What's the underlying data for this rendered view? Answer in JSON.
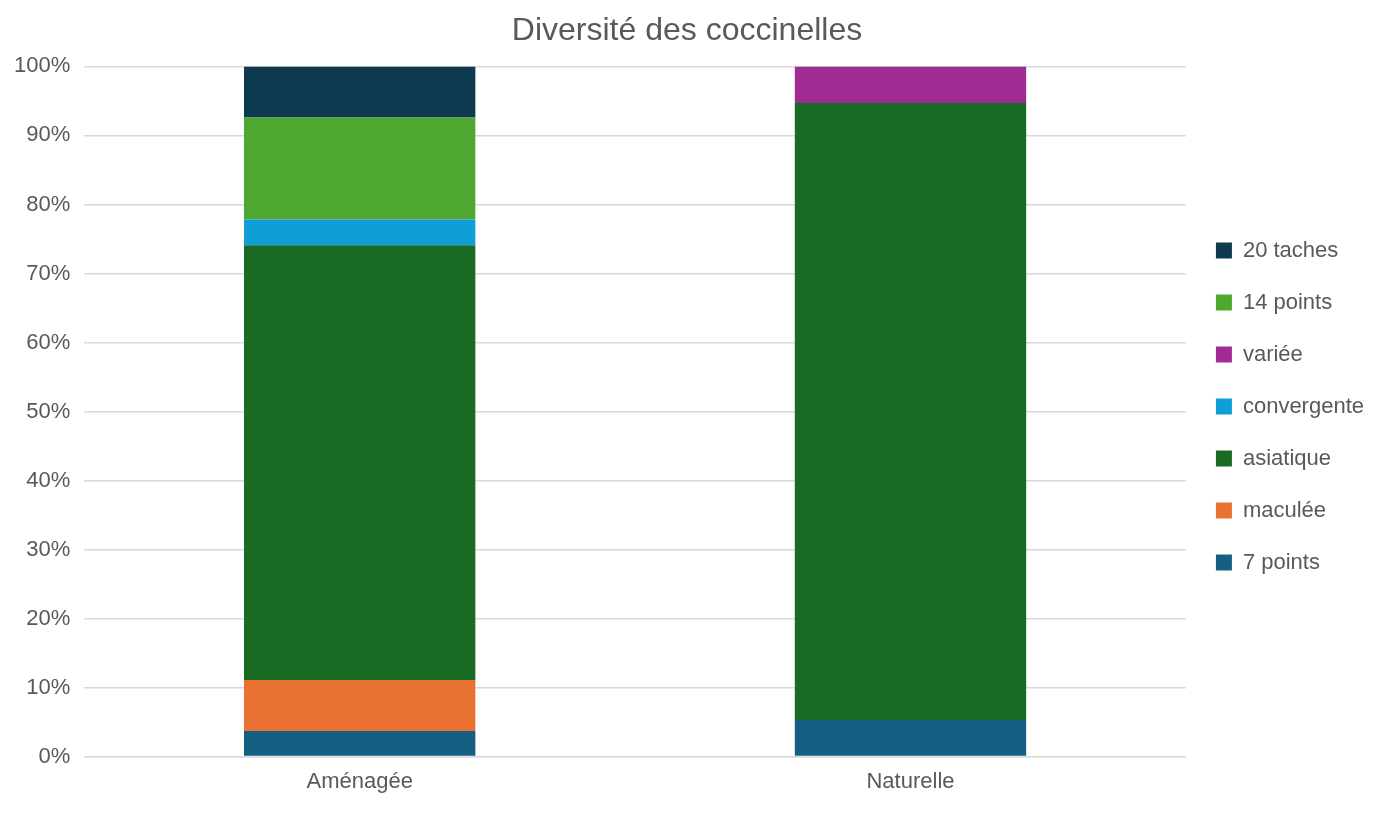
{
  "chart_data": {
    "type": "bar",
    "title": "Diversité des coccinelles",
    "stacked": true,
    "categories": [
      "Aménagée",
      "Naturelle"
    ],
    "series": [
      {
        "name": "7 points",
        "color": "#156082",
        "values": [
          3.7,
          5.3
        ]
      },
      {
        "name": "maculée",
        "color": "#e97132",
        "values": [
          7.4,
          0
        ]
      },
      {
        "name": "asiatique",
        "color": "#196b24",
        "values": [
          63.0,
          89.4
        ]
      },
      {
        "name": "convergente",
        "color": "#0f9ed5",
        "values": [
          3.7,
          0
        ]
      },
      {
        "name": "variée",
        "color": "#a02b93",
        "values": [
          0,
          5.3
        ]
      },
      {
        "name": "14 points",
        "color": "#4ea72e",
        "values": [
          14.8,
          0
        ]
      },
      {
        "name": "20 taches",
        "color": "#0e3a4f",
        "values": [
          7.4,
          0
        ]
      }
    ],
    "ylim": [
      0,
      100
    ],
    "yticks": [
      {
        "value": 0,
        "label": "0%"
      },
      {
        "value": 10,
        "label": "10%"
      },
      {
        "value": 20,
        "label": "20%"
      },
      {
        "value": 30,
        "label": "30%"
      },
      {
        "value": 40,
        "label": "40%"
      },
      {
        "value": 50,
        "label": "50%"
      },
      {
        "value": 60,
        "label": "60%"
      },
      {
        "value": 70,
        "label": "70%"
      },
      {
        "value": 80,
        "label": "80%"
      },
      {
        "value": 90,
        "label": "90%"
      },
      {
        "value": 100,
        "label": "100%"
      }
    ],
    "grid": "y",
    "legend": "right"
  }
}
